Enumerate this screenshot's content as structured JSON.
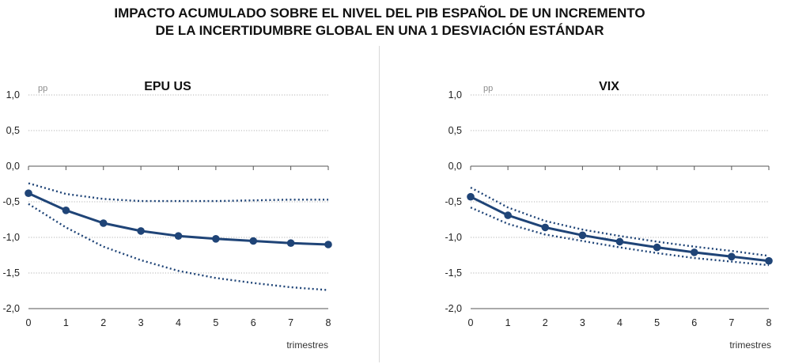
{
  "title_line1": "IMPACTO ACUMULADO SOBRE EL NIVEL DEL PIB ESPAÑOL DE UN INCREMENTO",
  "title_line2": "DE LA INCERTIDUMBRE GLOBAL EN UNA 1 DESVIACIÓN ESTÁNDAR",
  "colors": {
    "line": "#1f4477",
    "grid": "#9a9a9a",
    "axis": "#555555"
  },
  "chart_data": [
    {
      "type": "line",
      "title": "EPU US",
      "unit_label": "pp",
      "xlabel": "trimestres",
      "x": [
        0,
        1,
        2,
        3,
        4,
        5,
        6,
        7,
        8
      ],
      "ylim": [
        -2.0,
        1.0
      ],
      "yticks": [
        1.0,
        0.5,
        0.0,
        -0.5,
        -1.0,
        -1.5,
        -2.0
      ],
      "ytick_labels": [
        "1,0",
        "0,5",
        "0,0",
        "-0,5",
        "-1,0",
        "-1,5",
        "-2,0"
      ],
      "grid": true,
      "series": [
        {
          "role": "estimate",
          "style": "solid-markers",
          "values": [
            -0.38,
            -0.62,
            -0.8,
            -0.91,
            -0.98,
            -1.02,
            -1.05,
            -1.08,
            -1.1
          ]
        },
        {
          "role": "upper-band",
          "style": "dotted",
          "values": [
            -0.24,
            -0.39,
            -0.46,
            -0.49,
            -0.49,
            -0.49,
            -0.48,
            -0.47,
            -0.47
          ]
        },
        {
          "role": "lower-band",
          "style": "dotted",
          "values": [
            -0.53,
            -0.86,
            -1.13,
            -1.32,
            -1.47,
            -1.57,
            -1.64,
            -1.7,
            -1.74
          ]
        }
      ]
    },
    {
      "type": "line",
      "title": "VIX",
      "unit_label": "pp",
      "xlabel": "trimestres",
      "x": [
        0,
        1,
        2,
        3,
        4,
        5,
        6,
        7,
        8
      ],
      "ylim": [
        -2.0,
        1.0
      ],
      "yticks": [
        1.0,
        0.5,
        0.0,
        -0.5,
        -1.0,
        -1.5,
        -2.0
      ],
      "ytick_labels": [
        "1,0",
        "0,5",
        "0,0",
        "-0,5",
        "-1,0",
        "-1,5",
        "-2,0"
      ],
      "grid": true,
      "series": [
        {
          "role": "estimate",
          "style": "solid-markers",
          "values": [
            -0.43,
            -0.69,
            -0.86,
            -0.97,
            -1.06,
            -1.14,
            -1.21,
            -1.27,
            -1.33
          ]
        },
        {
          "role": "upper-band",
          "style": "dotted",
          "values": [
            -0.3,
            -0.58,
            -0.77,
            -0.89,
            -0.98,
            -1.06,
            -1.13,
            -1.19,
            -1.26
          ]
        },
        {
          "role": "lower-band",
          "style": "dotted",
          "values": [
            -0.58,
            -0.81,
            -0.96,
            -1.05,
            -1.14,
            -1.22,
            -1.29,
            -1.34,
            -1.39
          ]
        }
      ]
    }
  ]
}
